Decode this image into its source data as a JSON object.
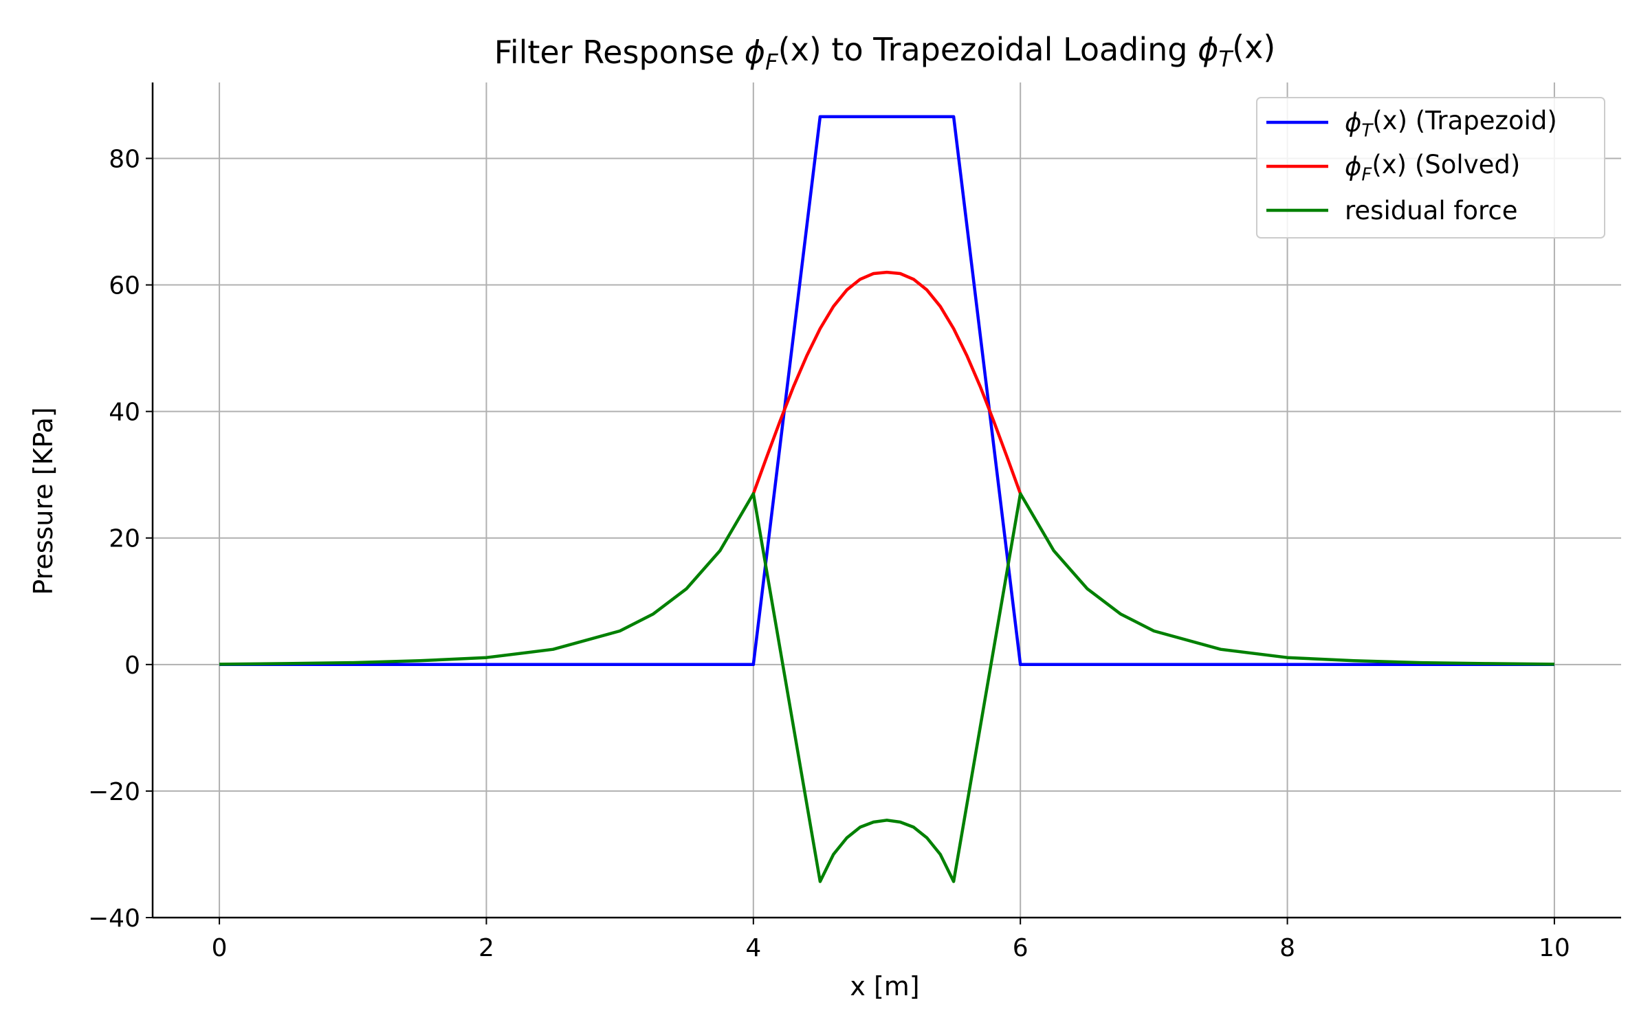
{
  "chart_data": {
    "type": "line",
    "title_parts": [
      "Filter Response ",
      "ϕ",
      "F",
      "(x)",
      " to Trapezoidal Loading ",
      "ϕ",
      "T",
      "(x)"
    ],
    "xlabel": "x [m]",
    "ylabel": "Pressure [KPa]",
    "xlim": [
      -0.5,
      10.5
    ],
    "ylim": [
      -40,
      92
    ],
    "xticks": [
      0,
      2,
      4,
      6,
      8,
      10
    ],
    "xtick_labels": [
      "0",
      "2",
      "4",
      "6",
      "8",
      "10"
    ],
    "yticks": [
      -40,
      -20,
      0,
      20,
      40,
      60,
      80
    ],
    "ytick_labels": [
      "−40",
      "−20",
      "0",
      "20",
      "40",
      "60",
      "80"
    ],
    "grid": true,
    "legend_position": "top-right",
    "series": [
      {
        "name_parts": [
          "ϕ",
          "T",
          "(x)",
          " (Trapezoid)"
        ],
        "color": "#0000ff",
        "x": [
          0,
          4.0,
          4.5,
          5.5,
          6.0,
          10
        ],
        "y": [
          0,
          0,
          86.6,
          86.6,
          0,
          0
        ]
      },
      {
        "name_parts": [
          "ϕ",
          "F",
          "(x)",
          " (Solved)"
        ],
        "color": "#ff0000",
        "x": [
          4.0,
          4.1,
          4.2,
          4.3,
          4.4,
          4.5,
          4.6,
          4.7,
          4.8,
          4.9,
          5.0,
          5.1,
          5.2,
          5.3,
          5.4,
          5.5,
          5.6,
          5.7,
          5.8,
          5.9,
          6.0
        ],
        "y": [
          27.0,
          32.8,
          38.5,
          43.9,
          48.8,
          53.1,
          56.6,
          59.2,
          60.9,
          61.8,
          62.0,
          61.8,
          60.9,
          59.2,
          56.6,
          53.1,
          48.8,
          43.9,
          38.5,
          32.8,
          27.0
        ]
      },
      {
        "name_parts": [
          "residual force"
        ],
        "color": "#008000",
        "x": [
          0,
          0.5,
          1.0,
          1.5,
          2.0,
          2.5,
          3.0,
          3.25,
          3.5,
          3.75,
          4.0,
          4.5,
          4.6,
          4.7,
          4.8,
          4.9,
          5.0,
          5.1,
          5.2,
          5.3,
          5.4,
          5.5,
          6.0,
          6.25,
          6.5,
          6.75,
          7.0,
          7.5,
          8.0,
          8.5,
          9.0,
          9.5,
          10.0
        ],
        "y": [
          0.05,
          0.15,
          0.3,
          0.6,
          1.1,
          2.4,
          5.3,
          8.0,
          12.0,
          18.0,
          27.0,
          -34.3,
          -30.0,
          -27.4,
          -25.7,
          -24.9,
          -24.6,
          -24.9,
          -25.7,
          -27.4,
          -30.0,
          -34.3,
          27.0,
          18.0,
          12.0,
          8.0,
          5.3,
          2.4,
          1.1,
          0.6,
          0.3,
          0.15,
          0.05
        ]
      }
    ]
  }
}
